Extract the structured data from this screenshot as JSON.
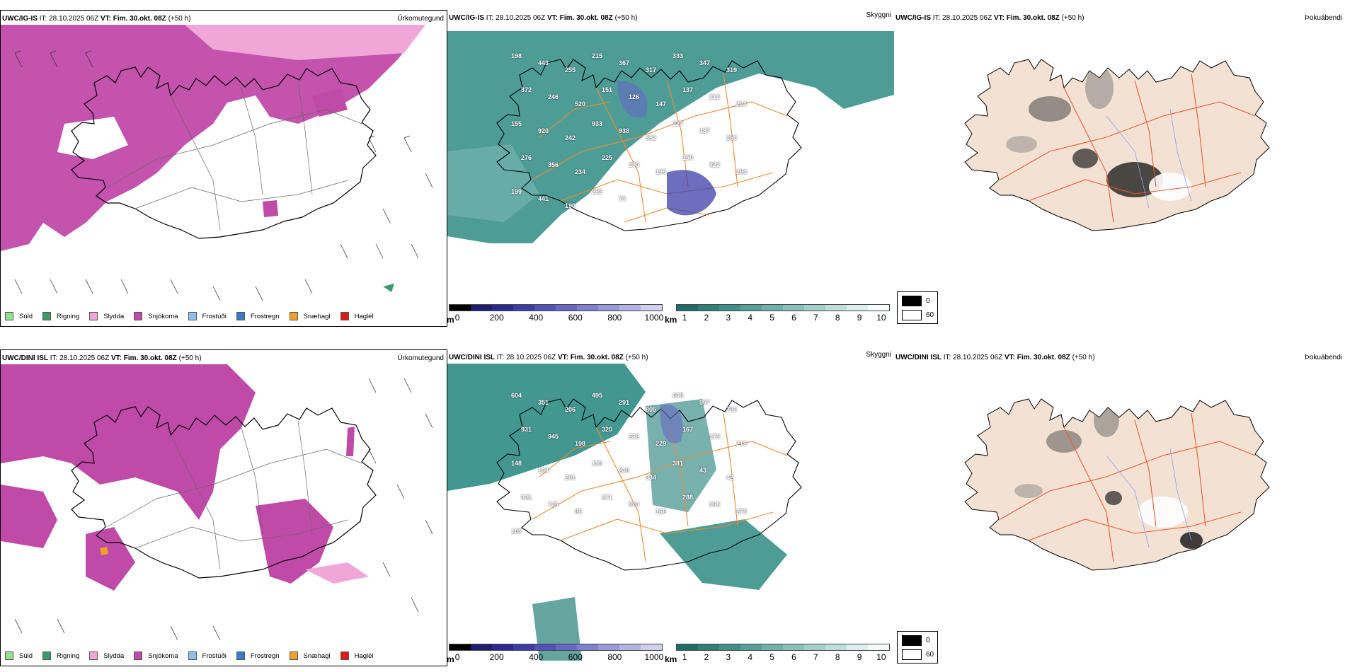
{
  "rows": [
    {
      "precip": {
        "model": "UWC/IG-IS",
        "it_prefix": "IT:",
        "it_value": "28.10.2025 06Z",
        "vt_label": "VT: Fim. 30.okt. 08Z",
        "offset": "(+50 h)",
        "var_title": "Úrkomutegund"
      },
      "ceiling": {
        "model": "UWC/IG-IS",
        "it_prefix": "IT:",
        "it_value": "28.10.2025 06Z",
        "vt_label": "VT: Fim. 30.okt. 08Z",
        "offset": "(+50 h)",
        "var_title": "Skyggni",
        "labels": [
          "198",
          "443",
          "255",
          "215",
          "367",
          "317",
          "333",
          "347",
          "319",
          "372",
          "246",
          "520",
          "151",
          "126",
          "147",
          "137",
          "212",
          "224",
          "155",
          "920",
          "242",
          "933",
          "938",
          "352",
          "227",
          "187",
          "260",
          "276",
          "356",
          "234",
          "225",
          "290",
          "195",
          "150",
          "322",
          "293",
          "199",
          "441",
          "190",
          "292",
          "79"
        ]
      },
      "fog": {
        "model": "UWC/IG-IS",
        "it_prefix": "IT:",
        "it_value": "28.10.2025 06Z",
        "vt_label": "VT: Fim. 30.okt. 08Z",
        "offset": "(+50 h)",
        "var_title": "Þokuábendi"
      }
    },
    {
      "precip": {
        "model": "UWC/DINI ISL",
        "it_prefix": "IT:",
        "it_value": "28.10.2025 06Z",
        "vt_label": "VT: Fim. 30.okt. 08Z",
        "offset": "(+50 h)",
        "var_title": "Úrkomutegund"
      },
      "ceiling": {
        "model": "UWC/DINI ISL",
        "it_prefix": "IT:",
        "it_value": "28.10.2025 06Z",
        "vt_label": "VT: Fim. 30.okt. 08Z",
        "offset": "(+50 h)",
        "var_title": "Skyggni",
        "labels": [
          "604",
          "351",
          "206",
          "495",
          "291",
          "805",
          "605",
          "997",
          "732",
          "931",
          "945",
          "198",
          "320",
          "232",
          "229",
          "167",
          "179",
          "219",
          "148",
          "134",
          "201",
          "199",
          "230",
          "334",
          "381",
          "43",
          "42",
          "921",
          "729",
          "86",
          "271",
          "974",
          "166",
          "288",
          "968",
          "275",
          "105"
        ]
      },
      "fog": {
        "model": "UWC/DINI ISL",
        "it_prefix": "IT:",
        "it_value": "28.10.2025 06Z",
        "vt_label": "VT: Fim. 30.okt. 08Z",
        "offset": "(+50 h)",
        "var_title": "Þokuábendi"
      }
    }
  ],
  "precip_legend": [
    {
      "label": "Súld",
      "color": "#8fe38f"
    },
    {
      "label": "Rigning",
      "color": "#3d9a6a"
    },
    {
      "label": "Slydda",
      "color": "#f0a7d8"
    },
    {
      "label": "Snjókoma",
      "color": "#c04aa8"
    },
    {
      "label": "Frostúði",
      "color": "#8cc1f0"
    },
    {
      "label": "Frostregn",
      "color": "#3a7ac4"
    },
    {
      "label": "Snæhagl",
      "color": "#f0a028"
    },
    {
      "label": "Haglél",
      "color": "#e01818"
    }
  ],
  "ceiling_scale": {
    "unit": "m",
    "ticks": [
      "0",
      "200",
      "400",
      "600",
      "800",
      "1000"
    ],
    "colors": [
      "#000000",
      "#1e1e6e",
      "#2a2a90",
      "#3d3da8",
      "#5252b8",
      "#6868c4",
      "#8080d0",
      "#9a9ada",
      "#b4b4e4",
      "#cfcfee"
    ]
  },
  "visibility_scale": {
    "unit": "km",
    "ticks": [
      "1",
      "2",
      "3",
      "4",
      "5",
      "6",
      "7",
      "8",
      "9",
      "10"
    ],
    "colors": [
      "#1f6d68",
      "#2e8079",
      "#3f908a",
      "#56a09a",
      "#6eb0aa",
      "#88c0ba",
      "#a3d0ca",
      "#bfe0da",
      "#dbefec",
      "#f4fbfa"
    ]
  },
  "fog_legend": {
    "high": "0",
    "low": "60"
  },
  "colors": {
    "snow": "#c04aa8",
    "sleet": "#f0a7d8",
    "visibility": "#2e8c84",
    "roads": "#f08a30",
    "land_fog": "#f3e2d3",
    "fog_roads": "#e85a32",
    "rivers": "#8aa0f0"
  }
}
